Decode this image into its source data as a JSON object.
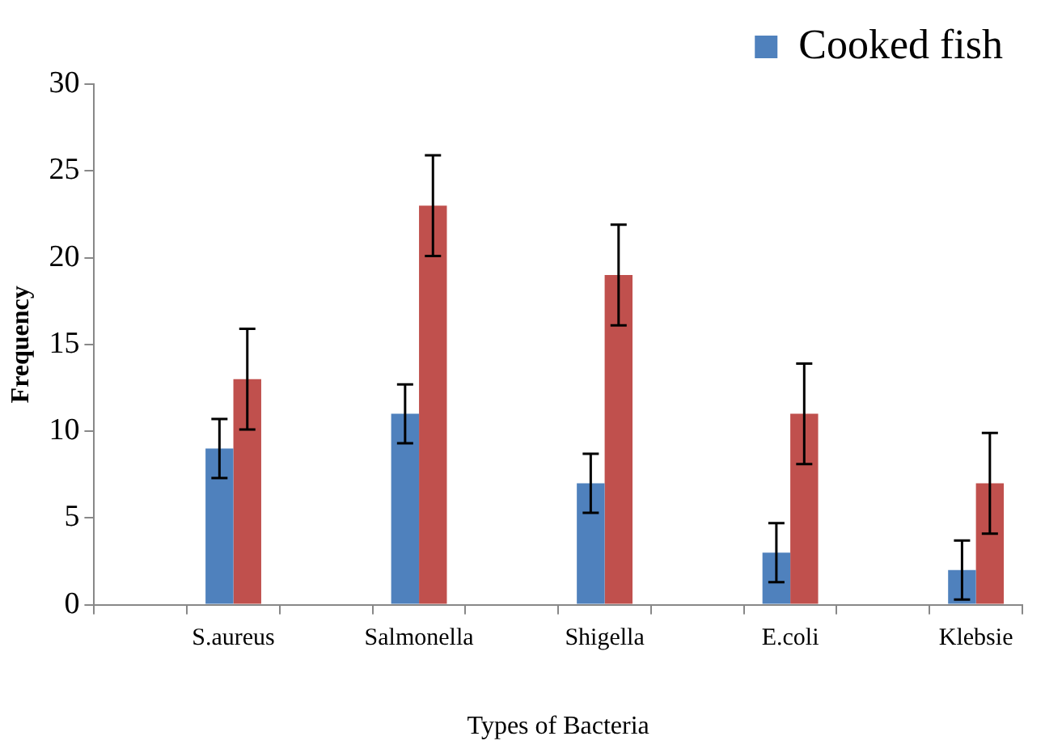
{
  "chart_data": {
    "type": "bar",
    "xlabel": "Types of Bacteria",
    "ylabel": "Frequency",
    "categories": [
      null,
      "S.aureus",
      null,
      "Salmonella",
      null,
      "Shigella",
      null,
      "E.coli",
      null,
      "Klebsie"
    ],
    "series": [
      {
        "name": "Cooked fish",
        "color": "#4f81bd",
        "values": [
          null,
          9,
          null,
          11,
          null,
          7,
          null,
          3,
          null,
          2
        ],
        "errors": [
          null,
          1.7,
          null,
          1.7,
          null,
          1.7,
          null,
          1.7,
          null,
          1.7
        ]
      },
      {
        "color": "#c0504d",
        "values": [
          null,
          13,
          null,
          23,
          null,
          19,
          null,
          11,
          null,
          7
        ],
        "errors": [
          null,
          2.9,
          null,
          2.9,
          null,
          2.9,
          null,
          2.9,
          null,
          2.9
        ]
      }
    ],
    "ylim": [
      0,
      30
    ],
    "yticks": [
      0,
      5,
      10,
      15,
      20,
      25,
      30
    ],
    "grid": false,
    "legend": "top right"
  }
}
